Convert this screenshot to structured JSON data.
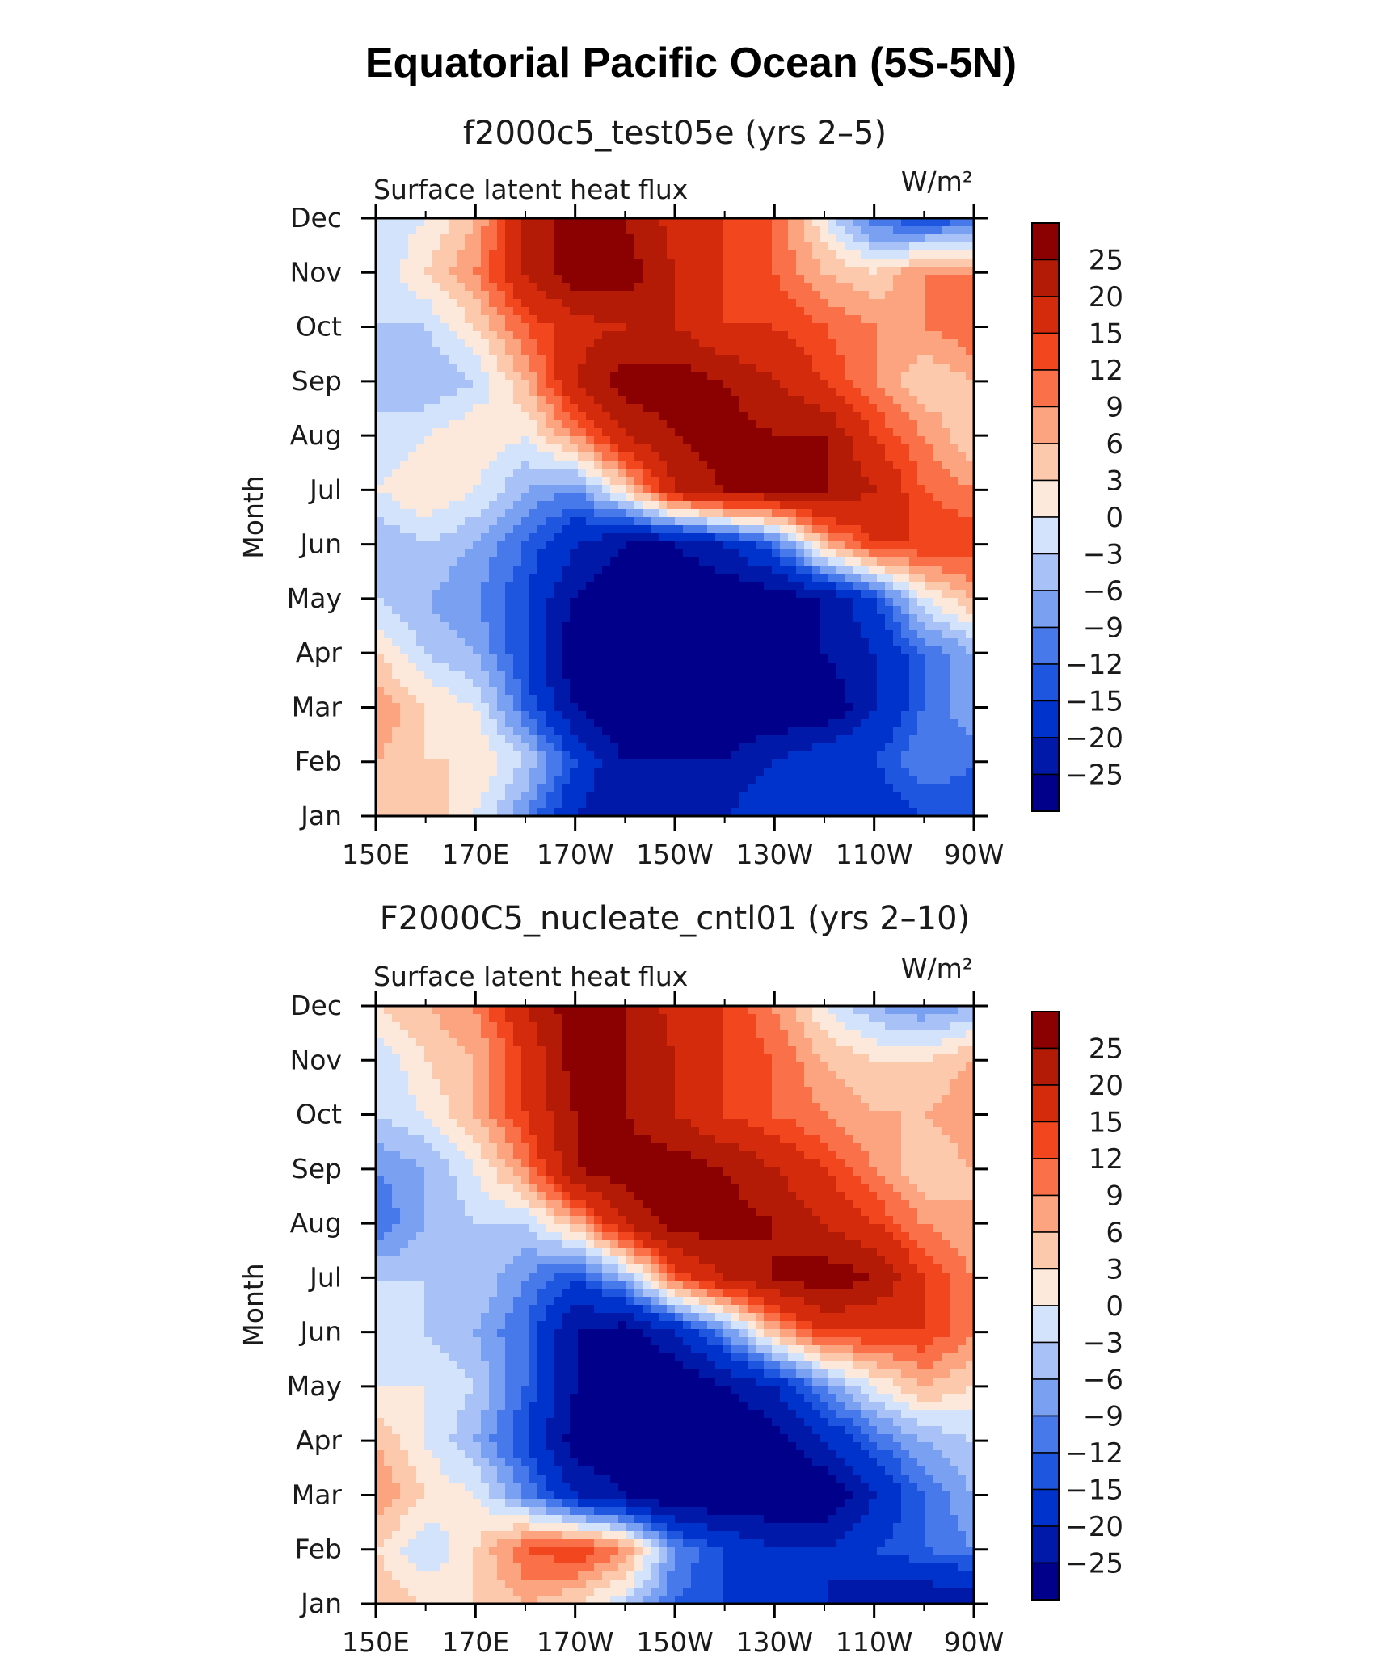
{
  "title": "Equatorial Pacific Ocean (5S-5N)",
  "colors": [
    "#00008b",
    "#0019a8",
    "#0033cc",
    "#1f56e0",
    "#4879eb",
    "#7aa0f2",
    "#a8c1f7",
    "#d3e3fb",
    "#fde9dc",
    "#fcc9ad",
    "#fca37f",
    "#fa7048",
    "#f2461f",
    "#d42b0c",
    "#b41b06",
    "#8b0000"
  ],
  "chart_data": [
    {
      "type": "heatmap",
      "title": "f2000c5_test05e (yrs 2–5)",
      "variable_label": "Surface latent heat flux",
      "units_label": "W/m²",
      "ylabel": "Month",
      "xlabel": "",
      "x_tick_labels": [
        "150E",
        "170E",
        "170W",
        "150W",
        "130W",
        "110W",
        "90W"
      ],
      "x": [
        150,
        170,
        190,
        210,
        230,
        250,
        270
      ],
      "y_tick_labels": [
        "Jan",
        "Feb",
        "Mar",
        "Apr",
        "May",
        "Jun",
        "Jul",
        "Aug",
        "Sep",
        "Oct",
        "Nov",
        "Dec"
      ],
      "colorbar_labels": [
        "25",
        "20",
        "15",
        "12",
        "9",
        "6",
        "3",
        "0",
        "−3",
        "−6",
        "−9",
        "−12",
        "−15",
        "−20",
        "−25"
      ],
      "levels": [
        -25,
        -20,
        -15,
        -12,
        -9,
        -6,
        -3,
        0,
        3,
        6,
        9,
        12,
        15,
        20,
        25
      ],
      "values": [
        [
          3,
          6,
          0,
          -9,
          -20,
          -25,
          -25,
          -20,
          -15,
          -18,
          -20,
          -15,
          -15
        ],
        [
          6,
          3,
          3,
          -3,
          -15,
          -25,
          -25,
          -25,
          -20,
          -15,
          -15,
          -9,
          -12
        ],
        [
          9,
          3,
          0,
          -12,
          -25,
          -30,
          -30,
          -30,
          -30,
          -30,
          -20,
          -12,
          -6
        ],
        [
          3,
          -3,
          -6,
          -15,
          -30,
          -30,
          -30,
          -30,
          -30,
          -25,
          -20,
          -12,
          -6
        ],
        [
          -3,
          -6,
          -9,
          -15,
          -25,
          -30,
          -30,
          -30,
          -28,
          -25,
          -15,
          0,
          6
        ],
        [
          -6,
          -3,
          -6,
          -12,
          -20,
          -25,
          -25,
          -20,
          -12,
          6,
          15,
          15,
          15
        ],
        [
          0,
          3,
          0,
          -6,
          -9,
          3,
          20,
          25,
          25,
          25,
          20,
          12,
          9
        ],
        [
          -3,
          0,
          3,
          0,
          9,
          20,
          25,
          28,
          25,
          25,
          15,
          9,
          3
        ],
        [
          -3,
          -6,
          -3,
          6,
          20,
          28,
          28,
          25,
          20,
          15,
          9,
          3,
          6
        ],
        [
          -3,
          -3,
          3,
          12,
          18,
          20,
          20,
          15,
          15,
          12,
          9,
          9,
          12
        ],
        [
          -3,
          3,
          9,
          20,
          28,
          28,
          20,
          15,
          12,
          6,
          3,
          9,
          9
        ],
        [
          -3,
          0,
          6,
          20,
          28,
          25,
          18,
          15,
          12,
          0,
          -12,
          -15,
          -12
        ]
      ]
    },
    {
      "type": "heatmap",
      "title": "F2000C5_nucleate_cntl01 (yrs 2–10)",
      "variable_label": "Surface latent heat flux",
      "units_label": "W/m²",
      "ylabel": "Month",
      "xlabel": "",
      "x_tick_labels": [
        "150E",
        "170E",
        "170W",
        "150W",
        "130W",
        "110W",
        "90W"
      ],
      "x": [
        150,
        170,
        190,
        210,
        230,
        250,
        270
      ],
      "y_tick_labels": [
        "Jan",
        "Feb",
        "Mar",
        "Apr",
        "May",
        "Jun",
        "Jul",
        "Aug",
        "Sep",
        "Oct",
        "Nov",
        "Dec"
      ],
      "colorbar_labels": [
        "25",
        "20",
        "15",
        "12",
        "9",
        "6",
        "3",
        "0",
        "−3",
        "−6",
        "−9",
        "−12",
        "−15",
        "−20",
        "−25"
      ],
      "levels": [
        -25,
        -20,
        -15,
        -12,
        -9,
        -6,
        -3,
        0,
        3,
        6,
        9,
        12,
        15,
        20,
        25
      ],
      "values": [
        [
          6,
          3,
          3,
          6,
          3,
          -3,
          -12,
          -15,
          -20,
          -20,
          -25,
          -25,
          -25
        ],
        [
          3,
          -3,
          3,
          12,
          15,
          9,
          -9,
          -15,
          -20,
          -20,
          -15,
          -12,
          -9
        ],
        [
          9,
          3,
          0,
          -9,
          -20,
          -25,
          -30,
          -30,
          -30,
          -30,
          -20,
          -12,
          -6
        ],
        [
          6,
          0,
          -6,
          -15,
          -28,
          -30,
          -30,
          -30,
          -28,
          -20,
          -12,
          -6,
          -3
        ],
        [
          0,
          0,
          -3,
          -12,
          -25,
          -30,
          -30,
          -25,
          -20,
          -9,
          0,
          6,
          3
        ],
        [
          -3,
          -3,
          -6,
          -12,
          -25,
          -28,
          -20,
          -9,
          6,
          15,
          15,
          15,
          9
        ],
        [
          -3,
          -3,
          -3,
          -9,
          -15,
          -6,
          12,
          20,
          25,
          28,
          25,
          15,
          9
        ],
        [
          -12,
          -6,
          -3,
          -3,
          6,
          20,
          28,
          28,
          25,
          20,
          15,
          9,
          6
        ],
        [
          -9,
          -6,
          0,
          9,
          25,
          28,
          28,
          25,
          20,
          15,
          9,
          3,
          6
        ],
        [
          -3,
          0,
          6,
          15,
          25,
          25,
          20,
          15,
          12,
          9,
          6,
          6,
          9
        ],
        [
          -3,
          3,
          6,
          15,
          28,
          25,
          20,
          15,
          12,
          6,
          3,
          3,
          6
        ],
        [
          3,
          6,
          9,
          20,
          28,
          25,
          18,
          15,
          9,
          0,
          -6,
          -9,
          -6
        ]
      ]
    }
  ]
}
